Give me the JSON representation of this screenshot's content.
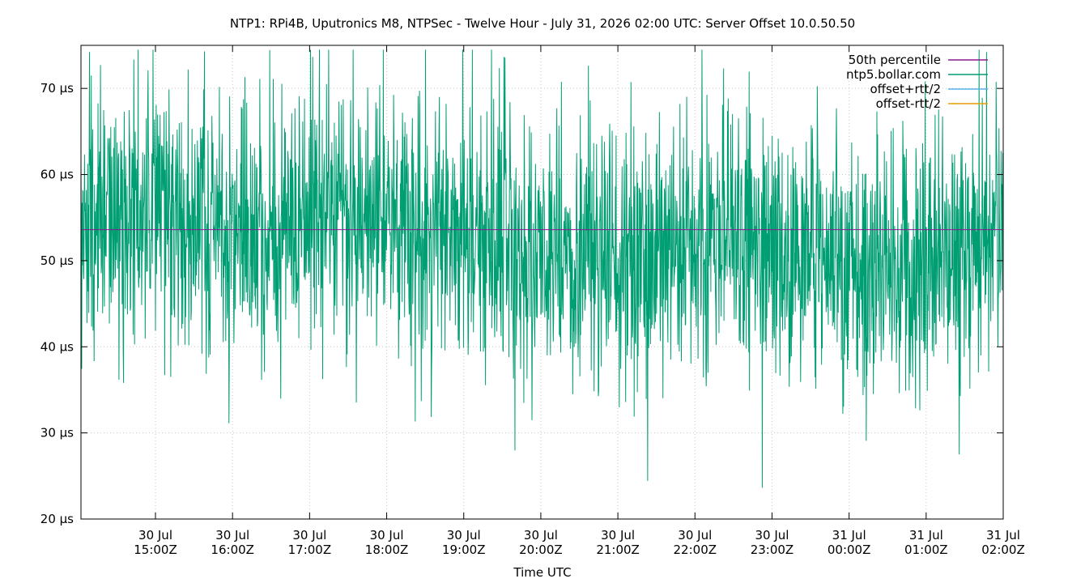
{
  "chart_data": {
    "type": "line",
    "title": "NTP1: RPi4B, Uputronics M8, NTPSec - Twelve Hour - July 31, 2026 02:00 UTC: Server Offset 10.0.50.50",
    "xlabel": "Time UTC",
    "ylabel": "",
    "xlim": [
      "2026-07-30 14:02",
      "2026-07-31 02:00"
    ],
    "ylim": [
      20,
      75
    ],
    "grid": true,
    "legend_position": "top-right",
    "x_ticks": [
      {
        "line1": "30 Jul",
        "line2": "15:00Z",
        "time": "2026-07-30 15:00"
      },
      {
        "line1": "30 Jul",
        "line2": "16:00Z",
        "time": "2026-07-30 16:00"
      },
      {
        "line1": "30 Jul",
        "line2": "17:00Z",
        "time": "2026-07-30 17:00"
      },
      {
        "line1": "30 Jul",
        "line2": "18:00Z",
        "time": "2026-07-30 18:00"
      },
      {
        "line1": "30 Jul",
        "line2": "19:00Z",
        "time": "2026-07-30 19:00"
      },
      {
        "line1": "30 Jul",
        "line2": "20:00Z",
        "time": "2026-07-30 20:00"
      },
      {
        "line1": "30 Jul",
        "line2": "21:00Z",
        "time": "2026-07-30 21:00"
      },
      {
        "line1": "30 Jul",
        "line2": "22:00Z",
        "time": "2026-07-30 22:00"
      },
      {
        "line1": "30 Jul",
        "line2": "23:00Z",
        "time": "2026-07-30 23:00"
      },
      {
        "line1": "31 Jul",
        "line2": "00:00Z",
        "time": "2026-07-31 00:00"
      },
      {
        "line1": "31 Jul",
        "line2": "01:00Z",
        "time": "2026-07-31 01:00"
      },
      {
        "line1": "31 Jul",
        "line2": "02:00Z",
        "time": "2026-07-31 02:00"
      }
    ],
    "y_ticks": [
      {
        "value": 20,
        "label": "20 µs"
      },
      {
        "value": 30,
        "label": "30 µs"
      },
      {
        "value": 40,
        "label": "40 µs"
      },
      {
        "value": 50,
        "label": "50 µs"
      },
      {
        "value": 60,
        "label": "60 µs"
      },
      {
        "value": 70,
        "label": "70 µs"
      }
    ],
    "series": [
      {
        "name": "50th percentile",
        "color": "#8b1a89",
        "kind": "constant",
        "value": 53.6
      },
      {
        "name": "ntp5.bollar.com",
        "color": "#009e73",
        "kind": "noisy",
        "x": [
          "2026-07-30 14:02",
          "2026-07-30 14:30",
          "2026-07-30 15:00",
          "2026-07-30 15:30",
          "2026-07-30 16:00",
          "2026-07-30 16:30",
          "2026-07-30 17:00",
          "2026-07-30 17:30",
          "2026-07-30 18:00",
          "2026-07-30 18:30",
          "2026-07-30 19:00",
          "2026-07-30 19:30",
          "2026-07-30 20:00",
          "2026-07-30 20:30",
          "2026-07-30 21:00",
          "2026-07-30 21:30",
          "2026-07-30 22:00",
          "2026-07-30 22:30",
          "2026-07-30 23:00",
          "2026-07-30 23:30",
          "2026-07-31 00:00",
          "2026-07-31 00:30",
          "2026-07-31 01:00",
          "2026-07-31 01:30",
          "2026-07-31 02:00"
        ],
        "center": [
          53.5,
          54.5,
          56.0,
          54.0,
          53.5,
          54.5,
          55.5,
          55.0,
          54.0,
          53.0,
          52.5,
          51.5,
          50.5,
          50.0,
          50.5,
          51.0,
          52.0,
          52.0,
          51.5,
          51.0,
          49.5,
          48.5,
          50.0,
          52.0,
          53.5
        ],
        "spread": [
          7.5,
          7.5,
          7.5,
          7.5,
          7.5,
          7.5,
          7.5,
          7.5,
          7.5,
          7.5,
          7.5,
          7.5,
          7.5,
          7.5,
          7.5,
          7.5,
          7.5,
          7.5,
          7.5,
          7.5,
          7.5,
          7.5,
          7.5,
          7.5,
          7.5
        ],
        "min": 20.0,
        "max": 74.5
      },
      {
        "name": "offset+rtt/2",
        "color": "#56b4e9",
        "kind": "none"
      },
      {
        "name": "offset-rtt/2",
        "color": "#e69f00",
        "kind": "none"
      }
    ]
  }
}
